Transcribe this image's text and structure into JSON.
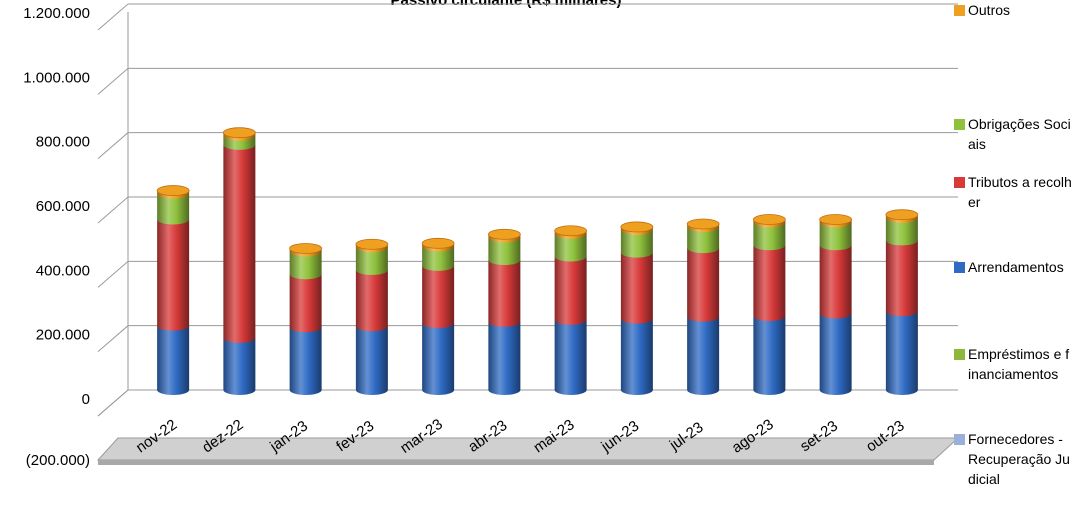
{
  "chart_data": {
    "type": "bar",
    "stacked": true,
    "three_d": true,
    "title": "Passivo circulante (R$ milhares)",
    "categories": [
      "nov-22",
      "dez-22",
      "jan-23",
      "fev-23",
      "mar-23",
      "abr-23",
      "mai-23",
      "jun-23",
      "jul-23",
      "ago-23",
      "set-23",
      "out-23"
    ],
    "ylim": [
      -200000,
      1200000
    ],
    "yticks": [
      -200000,
      0,
      200000,
      400000,
      600000,
      800000,
      1000000,
      1200000
    ],
    "ytick_labels": [
      "(200.000)",
      "0",
      "200.000",
      "400.000",
      "600.000",
      "800.000",
      "1.000.000",
      "1.200.000"
    ],
    "grid": true,
    "legend_position": "right",
    "series": [
      {
        "name": "Fornecedores - Recuperação Judicial",
        "color": "#9bb0d9",
        "values": [
          0,
          0,
          0,
          0,
          0,
          0,
          0,
          0,
          0,
          0,
          0,
          0
        ]
      },
      {
        "name": "Empréstimos e financiamentos",
        "color": "#8fb83a",
        "values": [
          0,
          0,
          0,
          0,
          0,
          0,
          0,
          0,
          0,
          0,
          0,
          0
        ]
      },
      {
        "name": "Arrendamentos",
        "color": "#2f6bc4",
        "values": [
          200000,
          162000,
          195000,
          198000,
          208000,
          212000,
          218000,
          222000,
          228000,
          230000,
          238000,
          245000
        ]
      },
      {
        "name": "Tributos a recolher",
        "color": "#d83a3a",
        "values": [
          330000,
          600000,
          165000,
          175000,
          178000,
          192000,
          197000,
          205000,
          213000,
          220000,
          212000,
          220000
        ]
      },
      {
        "name": "Obrigações Sociais",
        "color": "#8fc13c",
        "values": [
          80000,
          28000,
          70000,
          70000,
          60000,
          70000,
          70000,
          70000,
          65000,
          70000,
          70000,
          70000
        ]
      },
      {
        "name": "Outros",
        "color": "#f0a020",
        "values": [
          10000,
          10000,
          10000,
          10000,
          10000,
          10000,
          10000,
          10000,
          10000,
          10000,
          10000,
          10000
        ]
      }
    ]
  },
  "legend": {
    "items": [
      {
        "label": "Outros",
        "color": "#f0a020"
      },
      {
        "label": "Obrigações Sociais",
        "color": "#8fc13c"
      },
      {
        "label": "Tributos a recolher",
        "color": "#d83a3a"
      },
      {
        "label": "Arrendamentos",
        "color": "#2f6bc4"
      },
      {
        "label": "Empréstimos e financiamentos",
        "color": "#8fb83a"
      },
      {
        "label": "Fornecedores - Recuperação Judicial",
        "color": "#9bb0d9"
      }
    ]
  }
}
